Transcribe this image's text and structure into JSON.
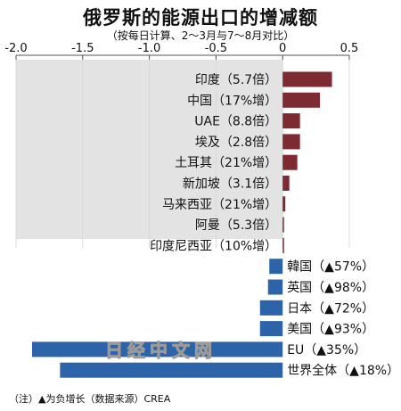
{
  "title": "俄罗斯的能源出口的增减额",
  "subtitle": "（按每日计算、2～3月与7～8月对比）",
  "note": "（注）▲为负增长（数据来源）CREA",
  "watermark": "日经中文网",
  "colors": {
    "increase": "#7d2a33",
    "decrease": "#2d63a8",
    "panel": "#e3e3e3"
  },
  "chart_data": {
    "type": "bar",
    "orientation": "horizontal",
    "title": "俄罗斯的能源出口的增减额",
    "subtitle": "（按每日计算、2～3月与7～8月对比）",
    "xlim": [
      -2.0,
      0.5
    ],
    "xticks": [
      "-2.0",
      "-1.5",
      "-1.0",
      "-0.5",
      "0",
      "0.5"
    ],
    "grid": true,
    "categories": [
      "印度（5.7倍）",
      "中国（17%增）",
      "UAE（8.8倍）",
      "埃及（2.8倍）",
      "土耳其（21%增）",
      "新加坡（3.1倍）",
      "马来西亚（21%增）",
      "阿曼（5.3倍）",
      "印度尼西亚（10%增）",
      "韓国（▲57%）",
      "英国（▲98%）",
      "日本（▲72%）",
      "美国（▲93%）",
      "EU（▲35%）",
      "世界全体（▲18%）"
    ],
    "values": [
      0.37,
      0.28,
      0.13,
      0.13,
      0.11,
      0.05,
      0.02,
      0.01,
      0.005,
      -0.1,
      -0.11,
      -0.17,
      -0.17,
      -1.88,
      -1.67
    ]
  }
}
